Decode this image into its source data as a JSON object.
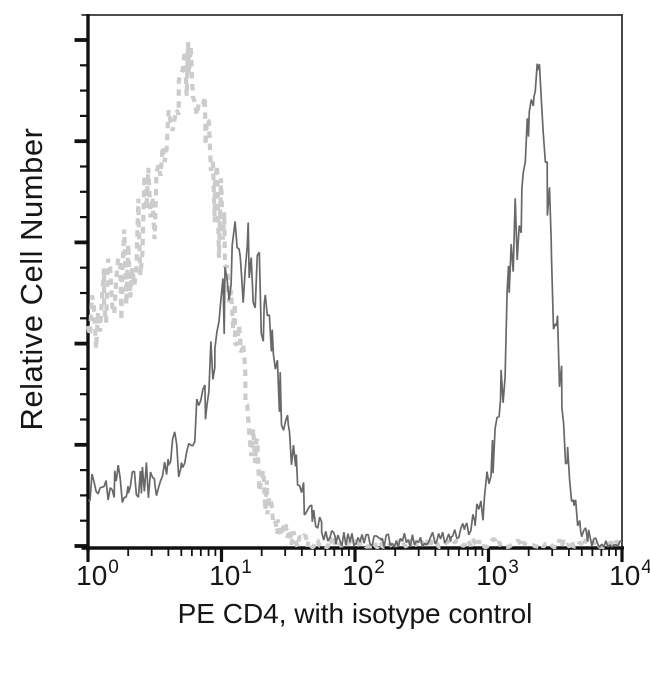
{
  "chart_data": {
    "type": "line",
    "subtype": "flow-cytometry-histogram-overlay",
    "title": "",
    "xlabel": "PE CD4, with isotype control",
    "ylabel": "Relative Cell Number",
    "grid": false,
    "legend": "none",
    "x_axis": {
      "scale": "log10",
      "min": 1,
      "max": 10000,
      "decade_exponents": [
        0,
        1,
        2,
        3,
        4
      ],
      "minor_mantissas": [
        2,
        3,
        4,
        5,
        6,
        7,
        8,
        9
      ]
    },
    "y_axis": {
      "label": "Relative Cell Number",
      "tick_labels_shown": false,
      "major_tick_count": 6,
      "minors_between_majors": 3
    },
    "x_tick_labels": [
      {
        "base": "10",
        "exp": "0"
      },
      {
        "base": "10",
        "exp": "1"
      },
      {
        "base": "10",
        "exp": "2"
      },
      {
        "base": "10",
        "exp": "3"
      },
      {
        "base": "10",
        "exp": "4"
      }
    ],
    "series": [
      {
        "name": "isotype_control",
        "style": "dashed",
        "color": "#cccccc",
        "peak_x": 6,
        "peak_height_frac": 0.92,
        "noise": 0.13,
        "points_log10x_yfrac": [
          [
            0.0,
            0.4
          ],
          [
            0.12,
            0.46
          ],
          [
            0.25,
            0.52
          ],
          [
            0.38,
            0.6
          ],
          [
            0.5,
            0.68
          ],
          [
            0.6,
            0.78
          ],
          [
            0.68,
            0.86
          ],
          [
            0.75,
            0.9
          ],
          [
            0.8,
            0.88
          ],
          [
            0.88,
            0.8
          ],
          [
            0.95,
            0.68
          ],
          [
            1.02,
            0.55
          ],
          [
            1.1,
            0.42
          ],
          [
            1.18,
            0.28
          ],
          [
            1.26,
            0.17
          ],
          [
            1.34,
            0.09
          ],
          [
            1.42,
            0.045
          ],
          [
            1.52,
            0.02
          ],
          [
            1.65,
            0.01
          ],
          [
            1.9,
            0.007
          ],
          [
            2.5,
            0.007
          ],
          [
            3.2,
            0.007
          ],
          [
            4.0,
            0.006
          ]
        ]
      },
      {
        "name": "pe_cd4",
        "style": "solid",
        "color": "#686868",
        "peak1_x": 15,
        "peak1_height_frac": 0.55,
        "peak2_x": 2300,
        "peak2_height_frac": 0.95,
        "noise": 0.12,
        "points_log10x_yfrac": [
          [
            0.0,
            0.115
          ],
          [
            0.1,
            0.11
          ],
          [
            0.2,
            0.12
          ],
          [
            0.3,
            0.12
          ],
          [
            0.4,
            0.13
          ],
          [
            0.5,
            0.14
          ],
          [
            0.6,
            0.16
          ],
          [
            0.7,
            0.185
          ],
          [
            0.8,
            0.24
          ],
          [
            0.88,
            0.3
          ],
          [
            0.95,
            0.37
          ],
          [
            1.02,
            0.46
          ],
          [
            1.08,
            0.52
          ],
          [
            1.14,
            0.55
          ],
          [
            1.2,
            0.54
          ],
          [
            1.26,
            0.5
          ],
          [
            1.32,
            0.46
          ],
          [
            1.38,
            0.38
          ],
          [
            1.44,
            0.3
          ],
          [
            1.5,
            0.22
          ],
          [
            1.56,
            0.15
          ],
          [
            1.62,
            0.09
          ],
          [
            1.68,
            0.055
          ],
          [
            1.75,
            0.035
          ],
          [
            1.85,
            0.022
          ],
          [
            2.0,
            0.016
          ],
          [
            2.2,
            0.014
          ],
          [
            2.4,
            0.014
          ],
          [
            2.6,
            0.016
          ],
          [
            2.72,
            0.02
          ],
          [
            2.82,
            0.028
          ],
          [
            2.9,
            0.05
          ],
          [
            2.97,
            0.09
          ],
          [
            3.03,
            0.16
          ],
          [
            3.09,
            0.28
          ],
          [
            3.15,
            0.45
          ],
          [
            3.2,
            0.57
          ],
          [
            3.25,
            0.68
          ],
          [
            3.3,
            0.78
          ],
          [
            3.34,
            0.86
          ],
          [
            3.365,
            0.95
          ],
          [
            3.38,
            0.9
          ],
          [
            3.41,
            0.8
          ],
          [
            3.44,
            0.7
          ],
          [
            3.47,
            0.55
          ],
          [
            3.51,
            0.4
          ],
          [
            3.55,
            0.27
          ],
          [
            3.59,
            0.16
          ],
          [
            3.64,
            0.08
          ],
          [
            3.69,
            0.04
          ],
          [
            3.75,
            0.018
          ],
          [
            3.83,
            0.008
          ],
          [
            4.0,
            0.006
          ]
        ]
      }
    ],
    "colors": {
      "axis": "#111111",
      "frame": "#333333",
      "text": "#161616",
      "background": "#ffffff"
    }
  }
}
